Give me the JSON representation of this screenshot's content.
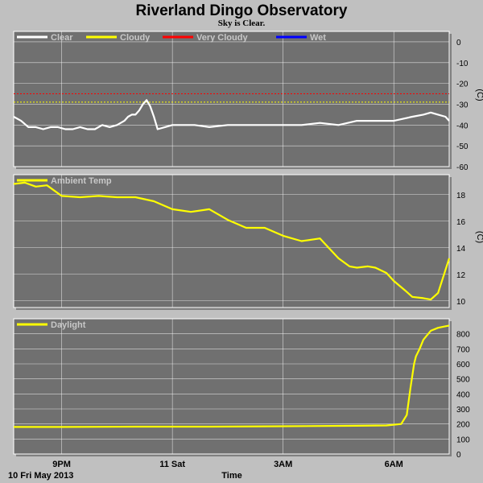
{
  "title": "Riverland Dingo Observatory",
  "subtitle": "Sky is Clear.",
  "x_axis": {
    "label": "Time",
    "date_label": "10 Fri May 2013",
    "ticks": [
      {
        "hours": 1.0,
        "label": "9PM"
      },
      {
        "hours": 4.0,
        "label": "11 Sat"
      },
      {
        "hours": 7.0,
        "label": "3AM"
      },
      {
        "hours": 10.0,
        "label": "6AM"
      }
    ],
    "range_hours": [
      -0.3,
      11.5
    ]
  },
  "colors": {
    "plot_bg": "#707070",
    "grid": "#ffffff",
    "clear": "#ffffff",
    "cloudy": "#ffff00",
    "very_cloudy": "#ff0000",
    "wet": "#0000ff"
  },
  "chart_data": [
    {
      "type": "line",
      "name": "sky",
      "unit": "(C)",
      "ylim": [
        -60,
        5
      ],
      "yticks": [
        0,
        -10,
        -20,
        -30,
        -40,
        -50,
        -60
      ],
      "legend": [
        {
          "label": "Clear",
          "color": "#ffffff"
        },
        {
          "label": "Cloudy",
          "color": "#ffff00"
        },
        {
          "label": "Very Cloudy",
          "color": "#ff0000"
        },
        {
          "label": "Wet",
          "color": "#0000ff"
        }
      ],
      "thresholds": [
        {
          "value": -25,
          "color": "#ff0000"
        },
        {
          "value": -29,
          "color": "#ffff00"
        }
      ],
      "series": [
        {
          "color": "#ffffff",
          "x": [
            -0.3,
            -0.1,
            0.1,
            0.3,
            0.5,
            0.7,
            0.9,
            1.1,
            1.3,
            1.5,
            1.7,
            1.9,
            2.1,
            2.3,
            2.5,
            2.7,
            2.8,
            2.9,
            3.0,
            3.1,
            3.2,
            3.3,
            3.4,
            3.5,
            3.6,
            3.8,
            4.0,
            4.3,
            4.6,
            5.0,
            5.5,
            6.0,
            6.5,
            7.0,
            7.5,
            8.0,
            8.5,
            9.0,
            9.5,
            10.0,
            10.5,
            10.8,
            11.0,
            11.2,
            11.4,
            11.5
          ],
          "y": [
            -36,
            -38,
            -41,
            -41,
            -42,
            -41,
            -41,
            -42,
            -42,
            -41,
            -42,
            -42,
            -40,
            -41,
            -40,
            -38,
            -36,
            -35,
            -35,
            -33,
            -30,
            -28,
            -31,
            -36,
            -42,
            -41,
            -40,
            -40,
            -40,
            -41,
            -40,
            -40,
            -40,
            -40,
            -40,
            -39,
            -40,
            -38,
            -38,
            -38,
            -36,
            -35,
            -34,
            -35,
            -36,
            -38
          ]
        }
      ]
    },
    {
      "type": "line",
      "name": "ambient",
      "unit": "(C)",
      "ylim": [
        9.5,
        19.5
      ],
      "yticks": [
        18,
        16,
        14,
        12,
        10
      ],
      "legend": [
        {
          "label": "Ambient Temp",
          "color": "#ffff00"
        }
      ],
      "series": [
        {
          "color": "#ffff00",
          "x": [
            -0.3,
            0.0,
            0.3,
            0.6,
            1.0,
            1.5,
            2.0,
            2.5,
            3.0,
            3.5,
            4.0,
            4.5,
            5.0,
            5.5,
            6.0,
            6.5,
            7.0,
            7.5,
            8.0,
            8.5,
            8.8,
            9.0,
            9.3,
            9.5,
            9.8,
            10.0,
            10.3,
            10.5,
            10.8,
            11.0,
            11.2,
            11.5
          ],
          "y": [
            18.8,
            18.9,
            18.6,
            18.7,
            17.9,
            17.8,
            17.9,
            17.8,
            17.8,
            17.5,
            16.9,
            16.7,
            16.9,
            16.1,
            15.5,
            15.5,
            14.9,
            14.5,
            14.7,
            13.2,
            12.6,
            12.5,
            12.6,
            12.5,
            12.1,
            11.5,
            10.8,
            10.3,
            10.2,
            10.1,
            10.6,
            13.2
          ]
        }
      ]
    },
    {
      "type": "line",
      "name": "daylight",
      "unit": "",
      "ylim": [
        0,
        900
      ],
      "yticks": [
        800,
        700,
        600,
        500,
        400,
        300,
        200,
        100,
        0
      ],
      "legend": [
        {
          "label": "Daylight",
          "color": "#ffff00"
        }
      ],
      "series": [
        {
          "color": "#ffff00",
          "x": [
            -0.3,
            1.0,
            3.0,
            5.0,
            7.0,
            9.0,
            9.8,
            10.2,
            10.35,
            10.45,
            10.55,
            10.6,
            10.7,
            10.8,
            11.0,
            11.2,
            11.4,
            11.5
          ],
          "y": [
            180,
            180,
            182,
            182,
            185,
            188,
            190,
            200,
            260,
            440,
            600,
            650,
            700,
            760,
            820,
            840,
            850,
            855
          ]
        }
      ]
    }
  ]
}
